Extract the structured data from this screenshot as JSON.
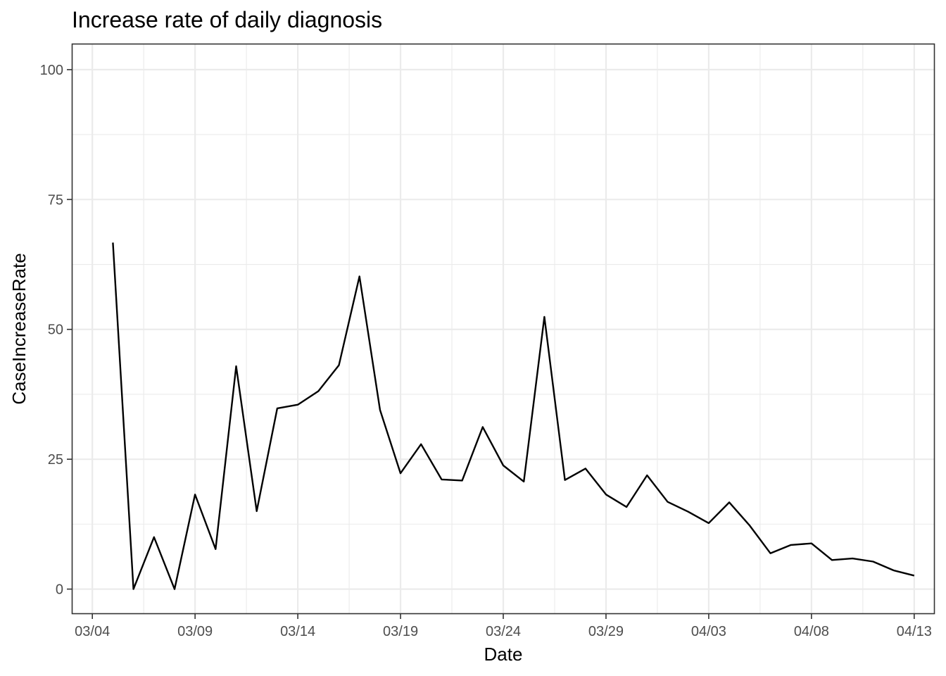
{
  "chart_data": {
    "type": "line",
    "title": "Increase rate of daily diagnosis",
    "xlabel": "Date",
    "ylabel": "CaseIncreaseRate",
    "ylim": [
      -4.8,
      105
    ],
    "xlim": [
      "2020-03-03",
      "2020-04-14"
    ],
    "x_ticks": [
      {
        "date": "2020-03-04",
        "label": "03/04"
      },
      {
        "date": "2020-03-09",
        "label": "03/09"
      },
      {
        "date": "2020-03-14",
        "label": "03/14"
      },
      {
        "date": "2020-03-19",
        "label": "03/19"
      },
      {
        "date": "2020-03-24",
        "label": "03/24"
      },
      {
        "date": "2020-03-29",
        "label": "03/29"
      },
      {
        "date": "2020-04-03",
        "label": "04/03"
      },
      {
        "date": "2020-04-08",
        "label": "04/08"
      },
      {
        "date": "2020-04-13",
        "label": "04/13"
      }
    ],
    "y_ticks": [
      0,
      25,
      50,
      75,
      100
    ],
    "grid": true,
    "line_color": "#000000",
    "x": [
      "2020-03-05",
      "2020-03-06",
      "2020-03-07",
      "2020-03-08",
      "2020-03-09",
      "2020-03-10",
      "2020-03-11",
      "2020-03-12",
      "2020-03-13",
      "2020-03-14",
      "2020-03-15",
      "2020-03-16",
      "2020-03-17",
      "2020-03-18",
      "2020-03-19",
      "2020-03-20",
      "2020-03-21",
      "2020-03-22",
      "2020-03-23",
      "2020-03-24",
      "2020-03-25",
      "2020-03-26",
      "2020-03-27",
      "2020-03-28",
      "2020-03-29",
      "2020-03-30",
      "2020-03-31",
      "2020-04-01",
      "2020-04-02",
      "2020-04-03",
      "2020-04-04",
      "2020-04-05",
      "2020-04-06",
      "2020-04-07",
      "2020-04-08",
      "2020-04-09",
      "2020-04-10",
      "2020-04-11",
      "2020-04-12",
      "2020-04-13"
    ],
    "values": [
      66.7,
      0,
      10,
      0,
      18.2,
      7.7,
      42.9,
      15,
      34.8,
      35.5,
      38.1,
      43.1,
      60.2,
      34.5,
      22.3,
      27.9,
      21.1,
      20.9,
      31.2,
      23.8,
      20.7,
      52.4,
      21,
      23.2,
      18.2,
      15.8,
      21.9,
      16.8,
      14.9,
      12.7,
      16.7,
      12.2,
      6.9,
      8.5,
      8.8,
      5.6,
      5.9,
      5.3,
      3.6,
      2.6
    ]
  }
}
